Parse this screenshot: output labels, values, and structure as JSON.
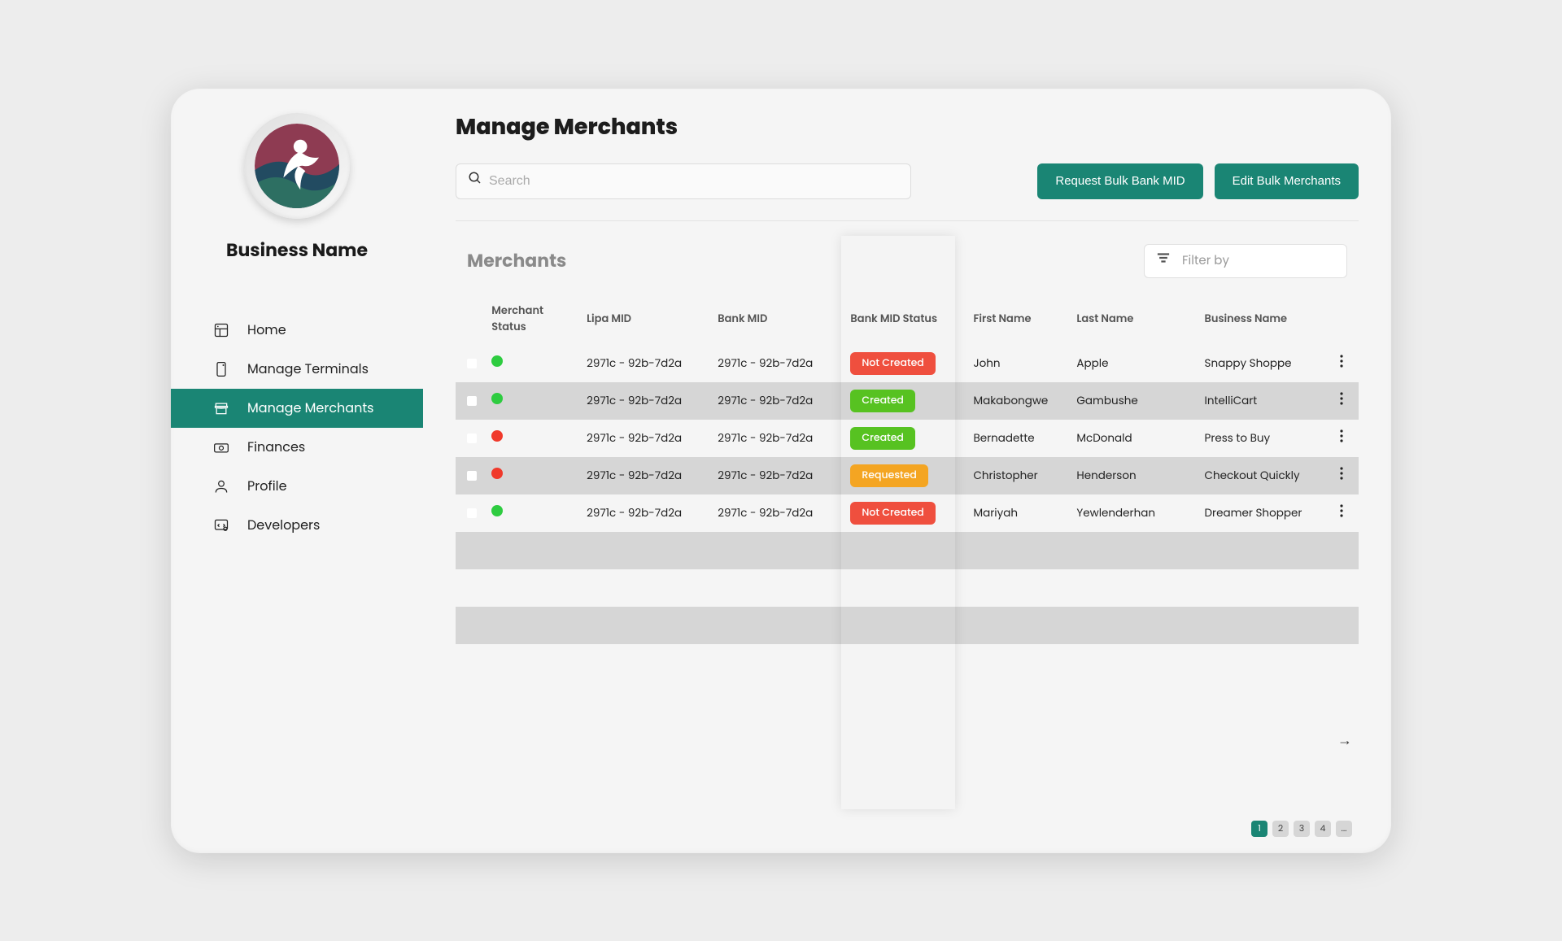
{
  "colors": {
    "accent": "#1a8574",
    "badge_not_created": "#f0503f",
    "badge_created": "#58c322",
    "badge_requested": "#f5a623",
    "status_green": "#2ecc40",
    "status_red": "#f0392b",
    "row_even": "#d6d6d6",
    "row_odd": "#f5f5f5",
    "page_bg": "#ededed",
    "panel_bg": "#f5f5f5"
  },
  "sidebar": {
    "business_name": "Business Name",
    "items": [
      {
        "label": "Home",
        "icon": "home"
      },
      {
        "label": "Manage Terminals",
        "icon": "terminal"
      },
      {
        "label": "Manage Merchants",
        "icon": "merchant",
        "active": true
      },
      {
        "label": "Finances",
        "icon": "finance"
      },
      {
        "label": "Profile",
        "icon": "profile"
      },
      {
        "label": "Developers",
        "icon": "dev"
      }
    ]
  },
  "page": {
    "title": "Manage Merchants",
    "search_placeholder": "Search",
    "btn_request": "Request Bulk Bank MID",
    "btn_edit": "Edit Bulk Merchants"
  },
  "panel": {
    "title": "Merchants",
    "filter_label": "Filter by"
  },
  "table": {
    "columns": [
      "Merchant Status",
      "Lipa MID",
      "Bank MID",
      "Bank MID Status",
      "First Name",
      "Last Name",
      "Business Name"
    ],
    "rows": [
      {
        "status_color": "#2ecc40",
        "lipa_mid": "2971c - 92b-7d2a",
        "bank_mid": "2971c - 92b-7d2a",
        "mid_status": "Not Created",
        "mid_color": "#f0503f",
        "first": "John",
        "last": "Apple",
        "biz": "Snappy Shoppe"
      },
      {
        "status_color": "#2ecc40",
        "lipa_mid": "2971c - 92b-7d2a",
        "bank_mid": "2971c - 92b-7d2a",
        "mid_status": "Created",
        "mid_color": "#58c322",
        "first": "Makabongwe",
        "last": "Gambushe",
        "biz": "IntelliCart"
      },
      {
        "status_color": "#f0392b",
        "lipa_mid": "2971c - 92b-7d2a",
        "bank_mid": "2971c - 92b-7d2a",
        "mid_status": "Created",
        "mid_color": "#58c322",
        "first": "Bernadette",
        "last": "McDonald",
        "biz": "Press to Buy"
      },
      {
        "status_color": "#f0392b",
        "lipa_mid": "2971c - 92b-7d2a",
        "bank_mid": "2971c - 92b-7d2a",
        "mid_status": "Requested",
        "mid_color": "#f5a623",
        "first": "Christopher",
        "last": "Henderson",
        "biz": "Checkout Quickly"
      },
      {
        "status_color": "#2ecc40",
        "lipa_mid": "2971c - 92b-7d2a",
        "bank_mid": "2971c - 92b-7d2a",
        "mid_status": "Not Created",
        "mid_color": "#f0503f",
        "first": "Mariyah",
        "last": "Yewlenderhan",
        "biz": "Dreamer Shopper"
      }
    ],
    "placeholder_rows": 3
  },
  "pagination": {
    "pages": [
      "1",
      "2",
      "3",
      "4",
      "..."
    ],
    "active": 0
  }
}
